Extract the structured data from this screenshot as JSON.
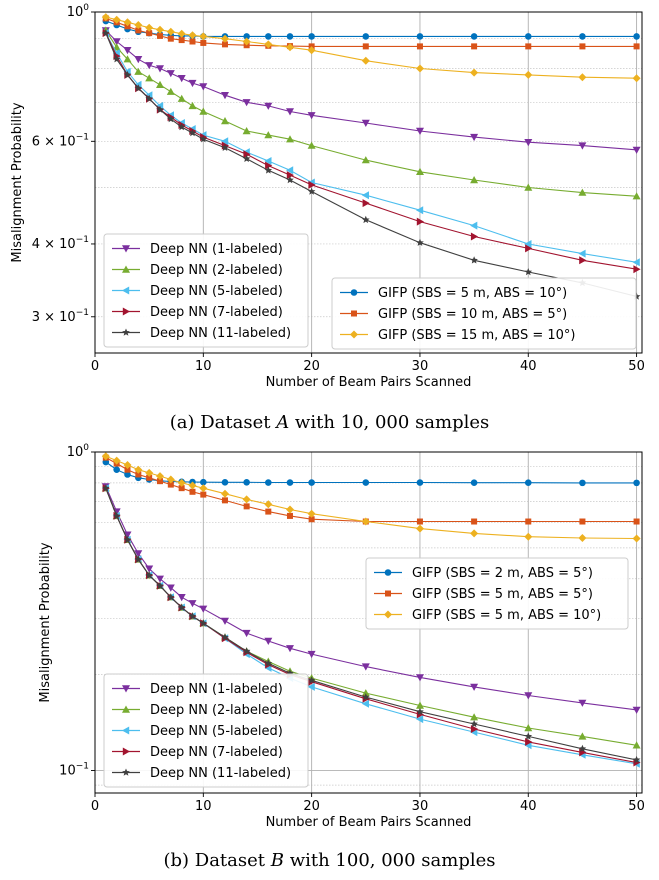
{
  "captions": {
    "a_prefix": "(a) Dataset ",
    "a_var": "A",
    "a_suffix": " with 10, 000 samples",
    "b_prefix": "(b) Dataset ",
    "b_var": "B",
    "b_suffix": " with 100, 000 samples"
  },
  "chart_data": [
    {
      "type": "line",
      "xlabel": "Number of Beam Pairs Scanned",
      "ylabel": "Misalignment Probability",
      "xlim": [
        0,
        50.5
      ],
      "ylim": [
        0.26,
        1.0
      ],
      "yscale": "log",
      "grid": true,
      "x_ticks": [
        0,
        10,
        20,
        30,
        40,
        50
      ],
      "y_ticks": [
        {
          "value": 1.0,
          "base": "10",
          "exp": "0",
          "coef": ""
        },
        {
          "value": 0.6,
          "base": "10",
          "exp": "−1",
          "coef": "6 × "
        },
        {
          "value": 0.4,
          "base": "10",
          "exp": "−1",
          "coef": "4 × "
        },
        {
          "value": 0.3,
          "base": "10",
          "exp": "−1",
          "coef": "3 × "
        }
      ],
      "x": [
        1,
        2,
        3,
        4,
        5,
        6,
        7,
        8,
        9,
        10,
        12,
        14,
        16,
        18,
        20,
        25,
        30,
        35,
        40,
        45,
        50
      ],
      "series": [
        {
          "name": "Deep NN (1-labeled)",
          "color": "#7b2f9e",
          "marker": "tri_down",
          "values": [
            0.93,
            0.89,
            0.86,
            0.83,
            0.81,
            0.8,
            0.785,
            0.77,
            0.755,
            0.745,
            0.72,
            0.7,
            0.69,
            0.675,
            0.665,
            0.645,
            0.625,
            0.61,
            0.598,
            0.59,
            0.58
          ]
        },
        {
          "name": "Deep NN (2-labeled)",
          "color": "#77ac30",
          "marker": "tri_up",
          "values": [
            0.93,
            0.87,
            0.83,
            0.79,
            0.77,
            0.75,
            0.73,
            0.71,
            0.69,
            0.675,
            0.65,
            0.625,
            0.615,
            0.605,
            0.59,
            0.557,
            0.532,
            0.515,
            0.5,
            0.49,
            0.483
          ]
        },
        {
          "name": "Deep NN (5-labeled)",
          "color": "#4dbeee",
          "marker": "tri_left",
          "values": [
            0.92,
            0.85,
            0.79,
            0.75,
            0.72,
            0.69,
            0.665,
            0.645,
            0.63,
            0.615,
            0.6,
            0.575,
            0.555,
            0.535,
            0.51,
            0.485,
            0.457,
            0.43,
            0.4,
            0.385,
            0.372
          ]
        },
        {
          "name": "Deep NN (7-labeled)",
          "color": "#a2142f",
          "marker": "tri_right",
          "values": [
            0.92,
            0.84,
            0.78,
            0.74,
            0.71,
            0.68,
            0.66,
            0.64,
            0.625,
            0.61,
            0.59,
            0.57,
            0.545,
            0.525,
            0.505,
            0.47,
            0.437,
            0.412,
            0.393,
            0.375,
            0.362
          ]
        },
        {
          "name": "Deep NN (11-labeled)",
          "color": "#404040",
          "marker": "star",
          "values": [
            0.92,
            0.83,
            0.78,
            0.74,
            0.71,
            0.68,
            0.655,
            0.635,
            0.62,
            0.605,
            0.585,
            0.56,
            0.535,
            0.515,
            0.492,
            0.44,
            0.402,
            0.375,
            0.358,
            0.343,
            0.325
          ]
        },
        {
          "name": "GIFP (SBS = 5 m, ABS = 10°)",
          "color": "#0072bd",
          "marker": "circle",
          "values": [
            0.965,
            0.95,
            0.935,
            0.925,
            0.92,
            0.915,
            0.912,
            0.91,
            0.91,
            0.908,
            0.908,
            0.908,
            0.908,
            0.908,
            0.908,
            0.908,
            0.908,
            0.908,
            0.908,
            0.908,
            0.908
          ]
        },
        {
          "name": "GIFP (SBS = 10 m, ABS = 5°)",
          "color": "#d95319",
          "marker": "square",
          "values": [
            0.975,
            0.96,
            0.945,
            0.93,
            0.92,
            0.91,
            0.9,
            0.895,
            0.89,
            0.885,
            0.88,
            0.877,
            0.875,
            0.874,
            0.873,
            0.873,
            0.873,
            0.873,
            0.873,
            0.873,
            0.873
          ]
        },
        {
          "name": "GIFP (SBS = 15 m, ABS = 10°)",
          "color": "#edb120",
          "marker": "diamond",
          "values": [
            0.98,
            0.97,
            0.96,
            0.95,
            0.94,
            0.932,
            0.925,
            0.918,
            0.912,
            0.908,
            0.9,
            0.89,
            0.88,
            0.87,
            0.86,
            0.825,
            0.8,
            0.787,
            0.78,
            0.773,
            0.77
          ]
        }
      ],
      "legends": [
        {
          "placement": "lower-left",
          "series": [
            0,
            1,
            2,
            3,
            4
          ]
        },
        {
          "placement": "lower-right",
          "series": [
            5,
            6,
            7
          ]
        }
      ]
    },
    {
      "type": "line",
      "xlabel": "Number of Beam Pairs Scanned",
      "ylabel": "Misalignment Probability",
      "xlim": [
        0,
        50.5
      ],
      "ylim": [
        0.085,
        1.0
      ],
      "yscale": "log",
      "grid": true,
      "x_ticks": [
        0,
        10,
        20,
        30,
        40,
        50
      ],
      "y_ticks": [
        {
          "value": 1.0,
          "base": "10",
          "exp": "0",
          "coef": ""
        },
        {
          "value": 0.1,
          "base": "10",
          "exp": "−1",
          "coef": ""
        }
      ],
      "x": [
        1,
        2,
        3,
        4,
        5,
        6,
        7,
        8,
        9,
        10,
        12,
        14,
        16,
        18,
        20,
        25,
        30,
        35,
        40,
        45,
        50
      ],
      "series": [
        {
          "name": "Deep NN (1-labeled)",
          "color": "#7b2f9e",
          "marker": "tri_down",
          "values": [
            0.78,
            0.65,
            0.55,
            0.48,
            0.43,
            0.4,
            0.375,
            0.35,
            0.335,
            0.322,
            0.295,
            0.27,
            0.255,
            0.242,
            0.232,
            0.212,
            0.196,
            0.183,
            0.172,
            0.163,
            0.155
          ]
        },
        {
          "name": "Deep NN (2-labeled)",
          "color": "#77ac30",
          "marker": "tri_up",
          "values": [
            0.77,
            0.63,
            0.53,
            0.46,
            0.41,
            0.38,
            0.35,
            0.325,
            0.305,
            0.29,
            0.262,
            0.237,
            0.22,
            0.205,
            0.195,
            0.175,
            0.16,
            0.147,
            0.136,
            0.128,
            0.12
          ]
        },
        {
          "name": "Deep NN (5-labeled)",
          "color": "#4dbeee",
          "marker": "tri_left",
          "values": [
            0.77,
            0.63,
            0.53,
            0.46,
            0.41,
            0.38,
            0.35,
            0.325,
            0.305,
            0.29,
            0.26,
            0.232,
            0.21,
            0.195,
            0.183,
            0.162,
            0.145,
            0.132,
            0.12,
            0.112,
            0.105
          ]
        },
        {
          "name": "Deep NN (7-labeled)",
          "color": "#a2142f",
          "marker": "tri_right",
          "values": [
            0.77,
            0.63,
            0.53,
            0.46,
            0.41,
            0.38,
            0.35,
            0.325,
            0.305,
            0.29,
            0.26,
            0.235,
            0.215,
            0.2,
            0.19,
            0.168,
            0.15,
            0.135,
            0.123,
            0.114,
            0.106
          ]
        },
        {
          "name": "Deep NN (11-labeled)",
          "color": "#404040",
          "marker": "star",
          "values": [
            0.77,
            0.63,
            0.53,
            0.46,
            0.41,
            0.38,
            0.35,
            0.325,
            0.305,
            0.29,
            0.262,
            0.237,
            0.217,
            0.202,
            0.192,
            0.17,
            0.153,
            0.14,
            0.128,
            0.117,
            0.108
          ]
        },
        {
          "name": "GIFP (SBS = 2 m, ABS = 5°)",
          "color": "#0072bd",
          "marker": "circle",
          "values": [
            0.93,
            0.88,
            0.85,
            0.83,
            0.82,
            0.812,
            0.808,
            0.806,
            0.805,
            0.804,
            0.803,
            0.803,
            0.802,
            0.802,
            0.802,
            0.802,
            0.802,
            0.801,
            0.801,
            0.8,
            0.8
          ]
        },
        {
          "name": "GIFP (SBS = 5 m, ABS = 5°)",
          "color": "#d95319",
          "marker": "square",
          "values": [
            0.96,
            0.92,
            0.88,
            0.85,
            0.83,
            0.81,
            0.79,
            0.77,
            0.75,
            0.735,
            0.705,
            0.675,
            0.65,
            0.63,
            0.615,
            0.605,
            0.605,
            0.605,
            0.605,
            0.605,
            0.605
          ]
        },
        {
          "name": "GIFP (SBS = 5 m, ABS = 10°)",
          "color": "#edb120",
          "marker": "diamond",
          "values": [
            0.97,
            0.94,
            0.91,
            0.88,
            0.86,
            0.84,
            0.82,
            0.8,
            0.785,
            0.77,
            0.74,
            0.71,
            0.685,
            0.66,
            0.64,
            0.605,
            0.575,
            0.555,
            0.542,
            0.537,
            0.535
          ]
        }
      ],
      "legends": [
        {
          "placement": "center-right",
          "series": [
            5,
            6,
            7
          ]
        },
        {
          "placement": "lower-left",
          "series": [
            0,
            1,
            2,
            3,
            4
          ]
        }
      ]
    }
  ]
}
